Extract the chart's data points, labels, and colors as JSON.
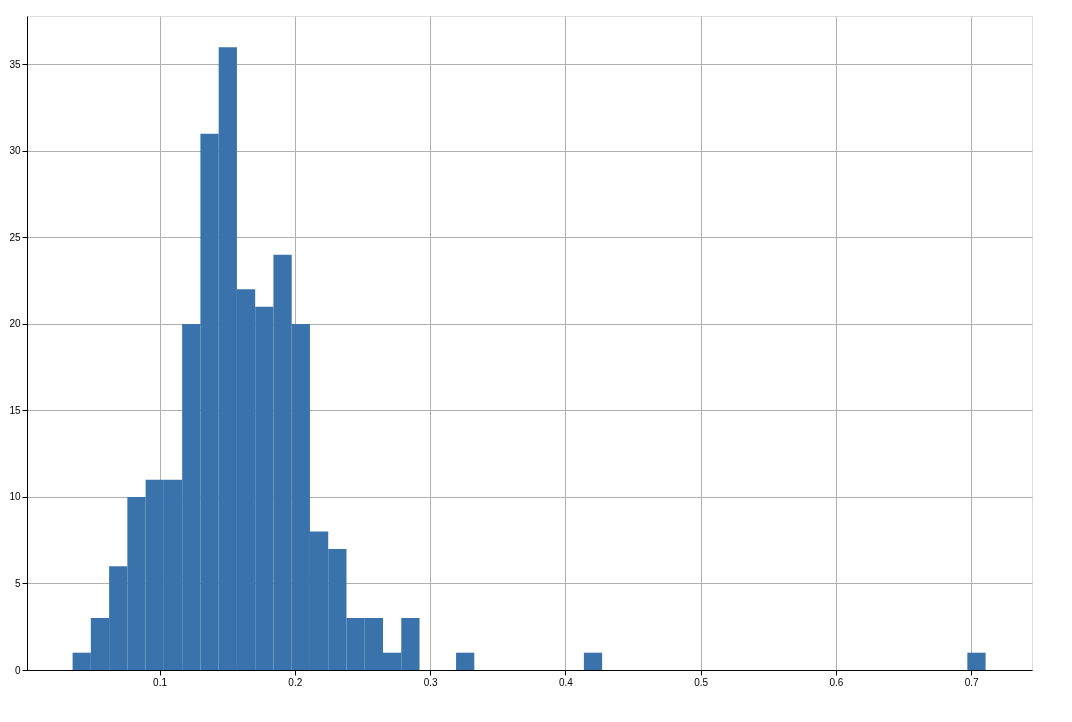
{
  "chart_data": {
    "type": "histogram",
    "color": "#3a73ac",
    "bins": [
      0.0357,
      0.0492,
      0.0627,
      0.0762,
      0.0897,
      0.1032,
      0.1167,
      0.1302,
      0.1437,
      0.1572,
      0.1707,
      0.1842,
      0.1977,
      0.2112,
      0.2247,
      0.2382,
      0.2517,
      0.2652,
      0.2787,
      0.2922,
      0.3057,
      0.3192,
      0.3327,
      0.3462,
      0.3597,
      0.3732,
      0.3867,
      0.4002,
      0.4137,
      0.4272,
      0.4407,
      0.4542,
      0.4677,
      0.4812,
      0.4947,
      0.5082,
      0.5217,
      0.5352,
      0.5487,
      0.5622,
      0.5757,
      0.5892,
      0.6027,
      0.6162,
      0.6297,
      0.6432,
      0.6567,
      0.6702,
      0.6837,
      0.6972,
      0.7107
    ],
    "values": [
      1,
      3,
      6,
      10,
      11,
      11,
      20,
      31,
      36,
      22,
      21,
      24,
      20,
      8,
      7,
      3,
      3,
      1,
      3,
      0,
      0,
      1,
      0,
      0,
      0,
      0,
      0,
      0,
      1,
      0,
      0,
      0,
      0,
      0,
      0,
      0,
      0,
      0,
      0,
      0,
      0,
      0,
      0,
      0,
      0,
      0,
      0,
      0,
      0,
      1
    ],
    "xlim": [
      0.002,
      0.745
    ],
    "ylim": [
      0,
      37.8
    ],
    "xticks": [
      0.1,
      0.2,
      0.3,
      0.4,
      0.5,
      0.6,
      0.7
    ],
    "yticks": [
      0,
      5,
      10,
      15,
      20,
      25,
      30,
      35
    ],
    "grid": true
  }
}
